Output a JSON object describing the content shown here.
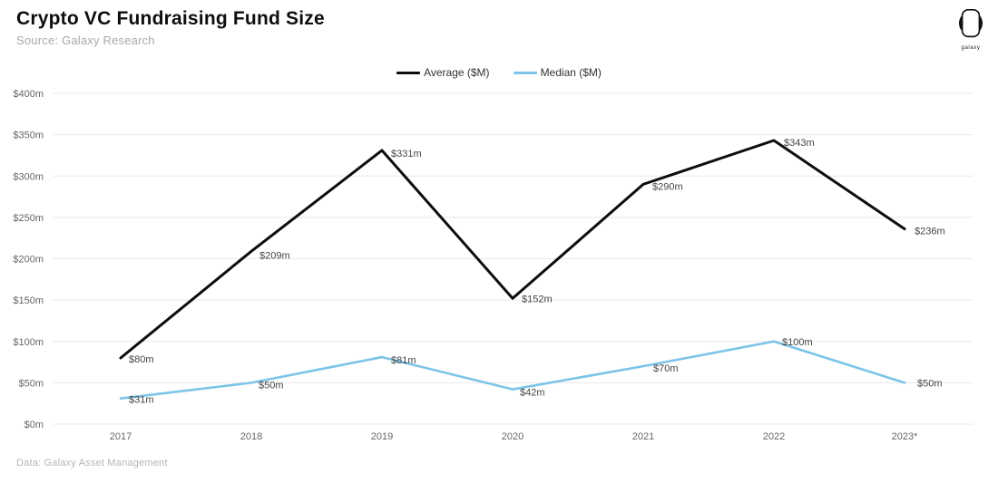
{
  "header": {
    "title": "Crypto VC Fundraising Fund Size",
    "subtitle": "Source: Galaxy Research"
  },
  "logo": {
    "label": "galaxy"
  },
  "legend": {
    "items": [
      {
        "label": "Average ($M)",
        "color": "#0d0d0d"
      },
      {
        "label": "Median ($M)",
        "color": "#7cc4e8"
      }
    ]
  },
  "footer": {
    "text": "Data: Galaxy Asset Management"
  },
  "chart_data": {
    "type": "line",
    "categories": [
      "2017",
      "2018",
      "2019",
      "2020",
      "2021",
      "2022",
      "2023*"
    ],
    "series": [
      {
        "name": "Average ($M)",
        "color": "#0d0d0d",
        "stroke_width": 3,
        "values": [
          80,
          209,
          331,
          152,
          290,
          343,
          236
        ],
        "point_labels": [
          "$80m",
          "$209m",
          "$331m",
          "$152m",
          "$290m",
          "$343m",
          "$236m"
        ]
      },
      {
        "name": "Median ($M)",
        "color": "#7cc4e8",
        "stroke_width": 2.6,
        "values": [
          31,
          50,
          81,
          42,
          70,
          100,
          50
        ],
        "point_labels": [
          "$31m",
          "$50m",
          "$81m",
          "$42m",
          "$70m",
          "$100m",
          "$50m"
        ]
      }
    ],
    "ylim": [
      0,
      400
    ],
    "y_ticks": [
      {
        "value": 0,
        "label": "$0m"
      },
      {
        "value": 50,
        "label": "$50m"
      },
      {
        "value": 100,
        "label": "$100m"
      },
      {
        "value": 150,
        "label": "$150m"
      },
      {
        "value": 200,
        "label": "$200m"
      },
      {
        "value": 250,
        "label": "$250m"
      },
      {
        "value": 300,
        "label": "$300m"
      },
      {
        "value": 350,
        "label": "$350m"
      },
      {
        "value": 400,
        "label": "$400m"
      }
    ],
    "grid": true,
    "legend_position": "top"
  }
}
